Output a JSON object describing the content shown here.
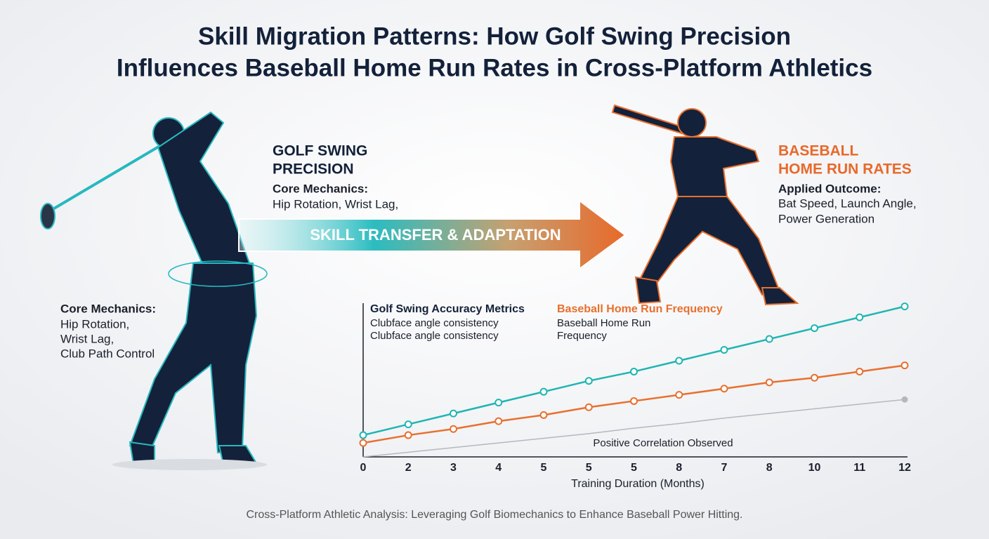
{
  "title": [
    "Skill Migration Patterns: How Golf Swing Precision",
    "Influences Baseball Home Run Rates in Cross-Platform Athletics"
  ],
  "golf_panel": {
    "heading": [
      "GOLF SWING",
      "PRECISION"
    ],
    "label": "Core Mechanics:",
    "text": "Hip Rotation, Wrist Lag,"
  },
  "arrow_label": "SKILL TRANSFER & ADAPTATION",
  "baseball_panel": {
    "heading": [
      "BASEBALL",
      "HOME RUN RATES"
    ],
    "label": "Applied Outcome:",
    "text": [
      "Bat Speed, Launch Angle,",
      "Power Generation"
    ]
  },
  "left_note": {
    "label": "Core Mechanics:",
    "text": [
      "Hip Rotation,",
      "Wrist Lag,",
      "Club Path Control"
    ]
  },
  "chart_data": {
    "type": "line",
    "categories": [
      "0",
      "2",
      "3",
      "4",
      "5",
      "5",
      "5",
      "8",
      "7",
      "8",
      "10",
      "11",
      "12"
    ],
    "xlabel": "Training Duration (Months)",
    "ylim": [
      0,
      100
    ],
    "annotation": "Positive Correlation Observed",
    "series": [
      {
        "name": "Golf Swing Accuracy Metrics",
        "description": [
          "Clubface angle consistency",
          "Clubface angle consistency"
        ],
        "color": "#1fb5b3",
        "markers": true,
        "values": [
          14,
          21,
          28,
          35,
          42,
          49,
          55,
          62,
          69,
          76,
          83,
          90,
          97
        ]
      },
      {
        "name": "Baseball Home Run Frequency",
        "description": [
          "Baseball Home Run",
          "Frequency"
        ],
        "color": "#e8702e",
        "markers": true,
        "values": [
          9,
          14,
          18,
          23,
          27,
          32,
          36,
          40,
          44,
          48,
          51,
          55,
          59
        ]
      },
      {
        "color": "#b4b8be",
        "markers": false,
        "values": [
          0,
          3,
          6,
          9,
          12,
          15,
          18.5,
          21.5,
          25,
          28,
          31,
          34,
          37
        ]
      }
    ]
  },
  "footer": "Cross-Platform Athletic Analysis: Leveraging Golf Biomechanics to Enhance Baseball Power Hitting."
}
